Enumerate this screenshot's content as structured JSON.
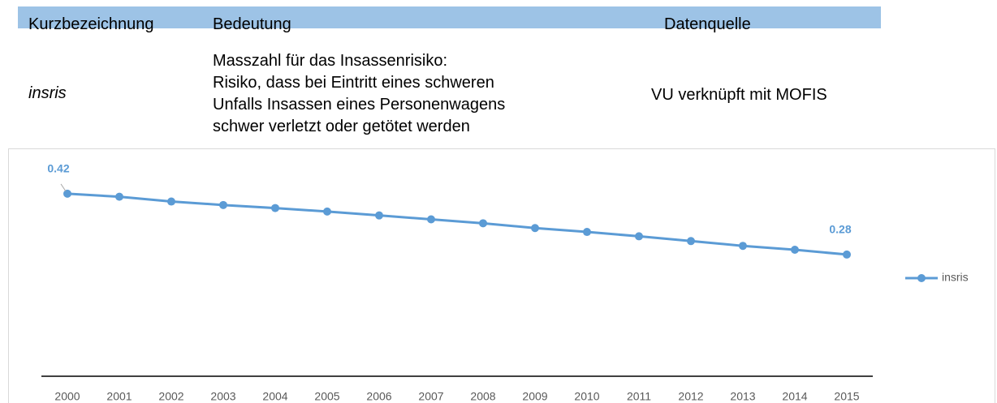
{
  "table": {
    "header": [
      "Kurzbezeichnung",
      "Bedeutung",
      "Datenquelle"
    ],
    "rows": [
      {
        "code": "insris",
        "meaning": [
          "Masszahl für das Insassenrisiko:",
          "Risiko, dass bei Eintritt eines schweren",
          "Unfalls Insassen eines Personenwagens",
          "schwer verletzt oder getötet werden"
        ],
        "source": "VU verknüpft mit MOFIS"
      }
    ]
  },
  "chart_data": {
    "type": "line",
    "categories": [
      "2000",
      "2001",
      "2002",
      "2003",
      "2004",
      "2005",
      "2006",
      "2007",
      "2008",
      "2009",
      "2010",
      "2011",
      "2012",
      "2013",
      "2014",
      "2015"
    ],
    "series": [
      {
        "name": "insris",
        "color": "#5b9bd5",
        "values": [
          0.42,
          0.413,
          0.402,
          0.394,
          0.387,
          0.379,
          0.37,
          0.361,
          0.352,
          0.341,
          0.332,
          0.322,
          0.311,
          0.3,
          0.291,
          0.28
        ],
        "value_labels": [
          "0.42",
          null,
          null,
          null,
          null,
          null,
          null,
          null,
          null,
          null,
          null,
          null,
          null,
          null,
          null,
          "0.28"
        ]
      }
    ],
    "ylim": [
      0,
      0.5
    ],
    "legend": "right"
  }
}
